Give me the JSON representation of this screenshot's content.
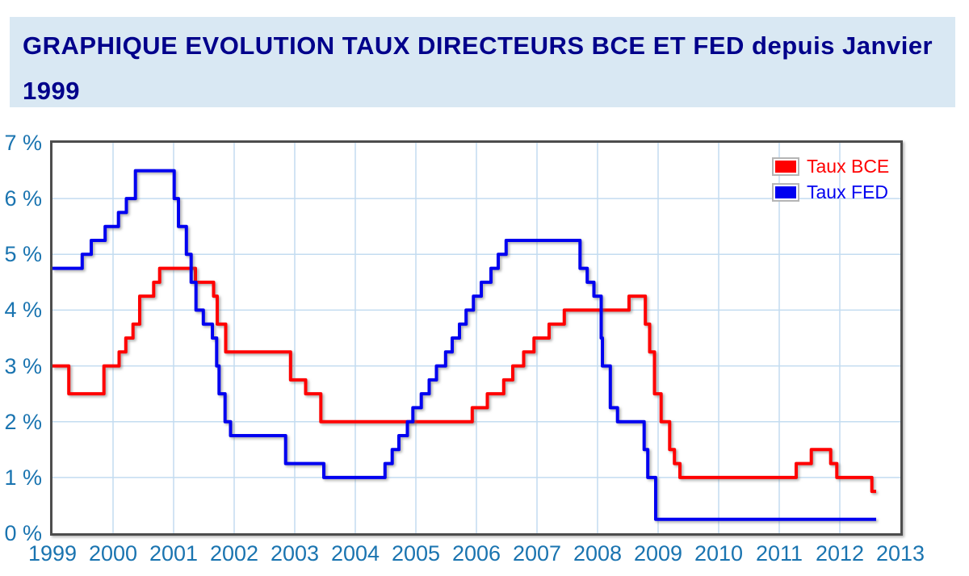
{
  "header": {
    "title_line1": "GRAPHIQUE EVOLUTION TAUX DIRECTEURS BCE ET FED depuis Janvier",
    "title_line2": "1999"
  },
  "colors": {
    "title_text": "#00008b",
    "title_bg": "#d9e8f3",
    "axis_label": "#1a74b0",
    "grid_line": "#c3dcf0",
    "plot_border": "#4d4d4d",
    "bce": "#ff0000",
    "fed": "#0000f0"
  },
  "chart_data": {
    "type": "line",
    "subtype": "step",
    "title": "GRAPHIQUE EVOLUTION TAUX DIRECTEURS BCE ET FED depuis Janvier 1999",
    "grid": true,
    "x_axis": {
      "range": [
        1999,
        2013
      ],
      "tick_labels": [
        "1999",
        "2000",
        "2001",
        "2002",
        "2003",
        "2004",
        "2005",
        "2006",
        "2007",
        "2008",
        "2009",
        "2010",
        "2011",
        "2012",
        "2013"
      ]
    },
    "y_axis": {
      "range": [
        0,
        7
      ],
      "unit": "%",
      "tick_labels": [
        "0 %",
        "1 %",
        "2 %",
        "3 %",
        "4 %",
        "5 %",
        "6 %",
        "7 %"
      ]
    },
    "legend": {
      "position": "top-right",
      "items": [
        {
          "label": "Taux BCE",
          "color": "#ff0000"
        },
        {
          "label": "Taux FED",
          "color": "#0000f0"
        }
      ]
    },
    "series": [
      {
        "name": "Taux BCE",
        "color": "#ff0000",
        "x_end": 2012.6,
        "points": [
          [
            1999.0,
            3.0
          ],
          [
            1999.27,
            2.5
          ],
          [
            1999.85,
            3.0
          ],
          [
            2000.1,
            3.25
          ],
          [
            2000.21,
            3.5
          ],
          [
            2000.33,
            3.75
          ],
          [
            2000.44,
            4.25
          ],
          [
            2000.67,
            4.5
          ],
          [
            2000.77,
            4.75
          ],
          [
            2001.36,
            4.5
          ],
          [
            2001.66,
            4.25
          ],
          [
            2001.72,
            3.75
          ],
          [
            2001.86,
            3.25
          ],
          [
            2002.93,
            2.75
          ],
          [
            2003.18,
            2.5
          ],
          [
            2003.43,
            2.0
          ],
          [
            2005.93,
            2.25
          ],
          [
            2006.18,
            2.5
          ],
          [
            2006.45,
            2.75
          ],
          [
            2006.6,
            3.0
          ],
          [
            2006.78,
            3.25
          ],
          [
            2006.95,
            3.5
          ],
          [
            2007.2,
            3.75
          ],
          [
            2007.45,
            4.0
          ],
          [
            2008.52,
            4.25
          ],
          [
            2008.79,
            3.75
          ],
          [
            2008.86,
            3.25
          ],
          [
            2008.94,
            2.5
          ],
          [
            2009.05,
            2.0
          ],
          [
            2009.19,
            1.5
          ],
          [
            2009.27,
            1.25
          ],
          [
            2009.36,
            1.0
          ],
          [
            2011.28,
            1.25
          ],
          [
            2011.53,
            1.5
          ],
          [
            2011.85,
            1.25
          ],
          [
            2011.95,
            1.0
          ],
          [
            2012.53,
            0.75
          ]
        ]
      },
      {
        "name": "Taux FED",
        "color": "#0000f0",
        "x_end": 2012.6,
        "points": [
          [
            1999.0,
            4.75
          ],
          [
            1999.49,
            5.0
          ],
          [
            1999.64,
            5.25
          ],
          [
            1999.87,
            5.5
          ],
          [
            2000.09,
            5.75
          ],
          [
            2000.22,
            6.0
          ],
          [
            2000.37,
            6.5
          ],
          [
            2001.01,
            6.0
          ],
          [
            2001.08,
            5.5
          ],
          [
            2001.21,
            5.0
          ],
          [
            2001.29,
            4.5
          ],
          [
            2001.37,
            4.0
          ],
          [
            2001.49,
            3.75
          ],
          [
            2001.64,
            3.5
          ],
          [
            2001.71,
            3.0
          ],
          [
            2001.75,
            2.5
          ],
          [
            2001.85,
            2.0
          ],
          [
            2001.94,
            1.75
          ],
          [
            2002.85,
            1.25
          ],
          [
            2003.48,
            1.0
          ],
          [
            2004.49,
            1.25
          ],
          [
            2004.61,
            1.5
          ],
          [
            2004.72,
            1.75
          ],
          [
            2004.86,
            2.0
          ],
          [
            2004.95,
            2.25
          ],
          [
            2005.09,
            2.5
          ],
          [
            2005.22,
            2.75
          ],
          [
            2005.34,
            3.0
          ],
          [
            2005.49,
            3.25
          ],
          [
            2005.6,
            3.5
          ],
          [
            2005.72,
            3.75
          ],
          [
            2005.83,
            4.0
          ],
          [
            2005.95,
            4.25
          ],
          [
            2006.08,
            4.5
          ],
          [
            2006.24,
            4.75
          ],
          [
            2006.36,
            5.0
          ],
          [
            2006.49,
            5.25
          ],
          [
            2007.71,
            4.75
          ],
          [
            2007.83,
            4.5
          ],
          [
            2007.94,
            4.25
          ],
          [
            2008.06,
            3.5
          ],
          [
            2008.08,
            3.0
          ],
          [
            2008.21,
            2.25
          ],
          [
            2008.33,
            2.0
          ],
          [
            2008.77,
            1.5
          ],
          [
            2008.83,
            1.0
          ],
          [
            2008.96,
            0.25
          ]
        ]
      }
    ]
  }
}
